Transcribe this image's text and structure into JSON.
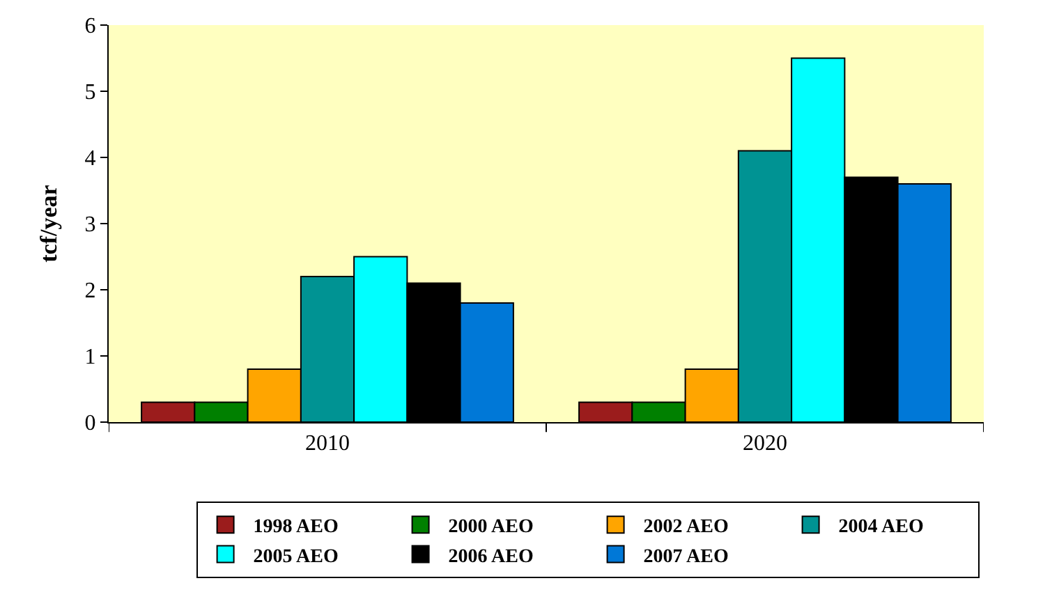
{
  "chart_data": {
    "type": "bar",
    "ylabel": "tcf/year",
    "categories": [
      "2010",
      "2020"
    ],
    "series": [
      {
        "name": "1998 AEO",
        "color": "#9b1c1c",
        "values": [
          0.3,
          0.3
        ]
      },
      {
        "name": "2000 AEO",
        "color": "#008000",
        "values": [
          0.3,
          0.3
        ]
      },
      {
        "name": "2002 AEO",
        "color": "#ffa500",
        "values": [
          0.8,
          0.8
        ]
      },
      {
        "name": "2004 AEO",
        "color": "#009393",
        "values": [
          2.2,
          4.1
        ]
      },
      {
        "name": "2005 AEO",
        "color": "#00ffff",
        "values": [
          2.5,
          5.5
        ]
      },
      {
        "name": "2006 AEO",
        "color": "#000000",
        "values": [
          2.1,
          3.7
        ]
      },
      {
        "name": "2007 AEO",
        "color": "#0078d7",
        "values": [
          1.8,
          3.6
        ]
      }
    ],
    "ylim": [
      0,
      6
    ],
    "yticks": [
      0,
      1,
      2,
      3,
      4,
      5,
      6
    ],
    "grid": false,
    "legend": "bottom"
  }
}
